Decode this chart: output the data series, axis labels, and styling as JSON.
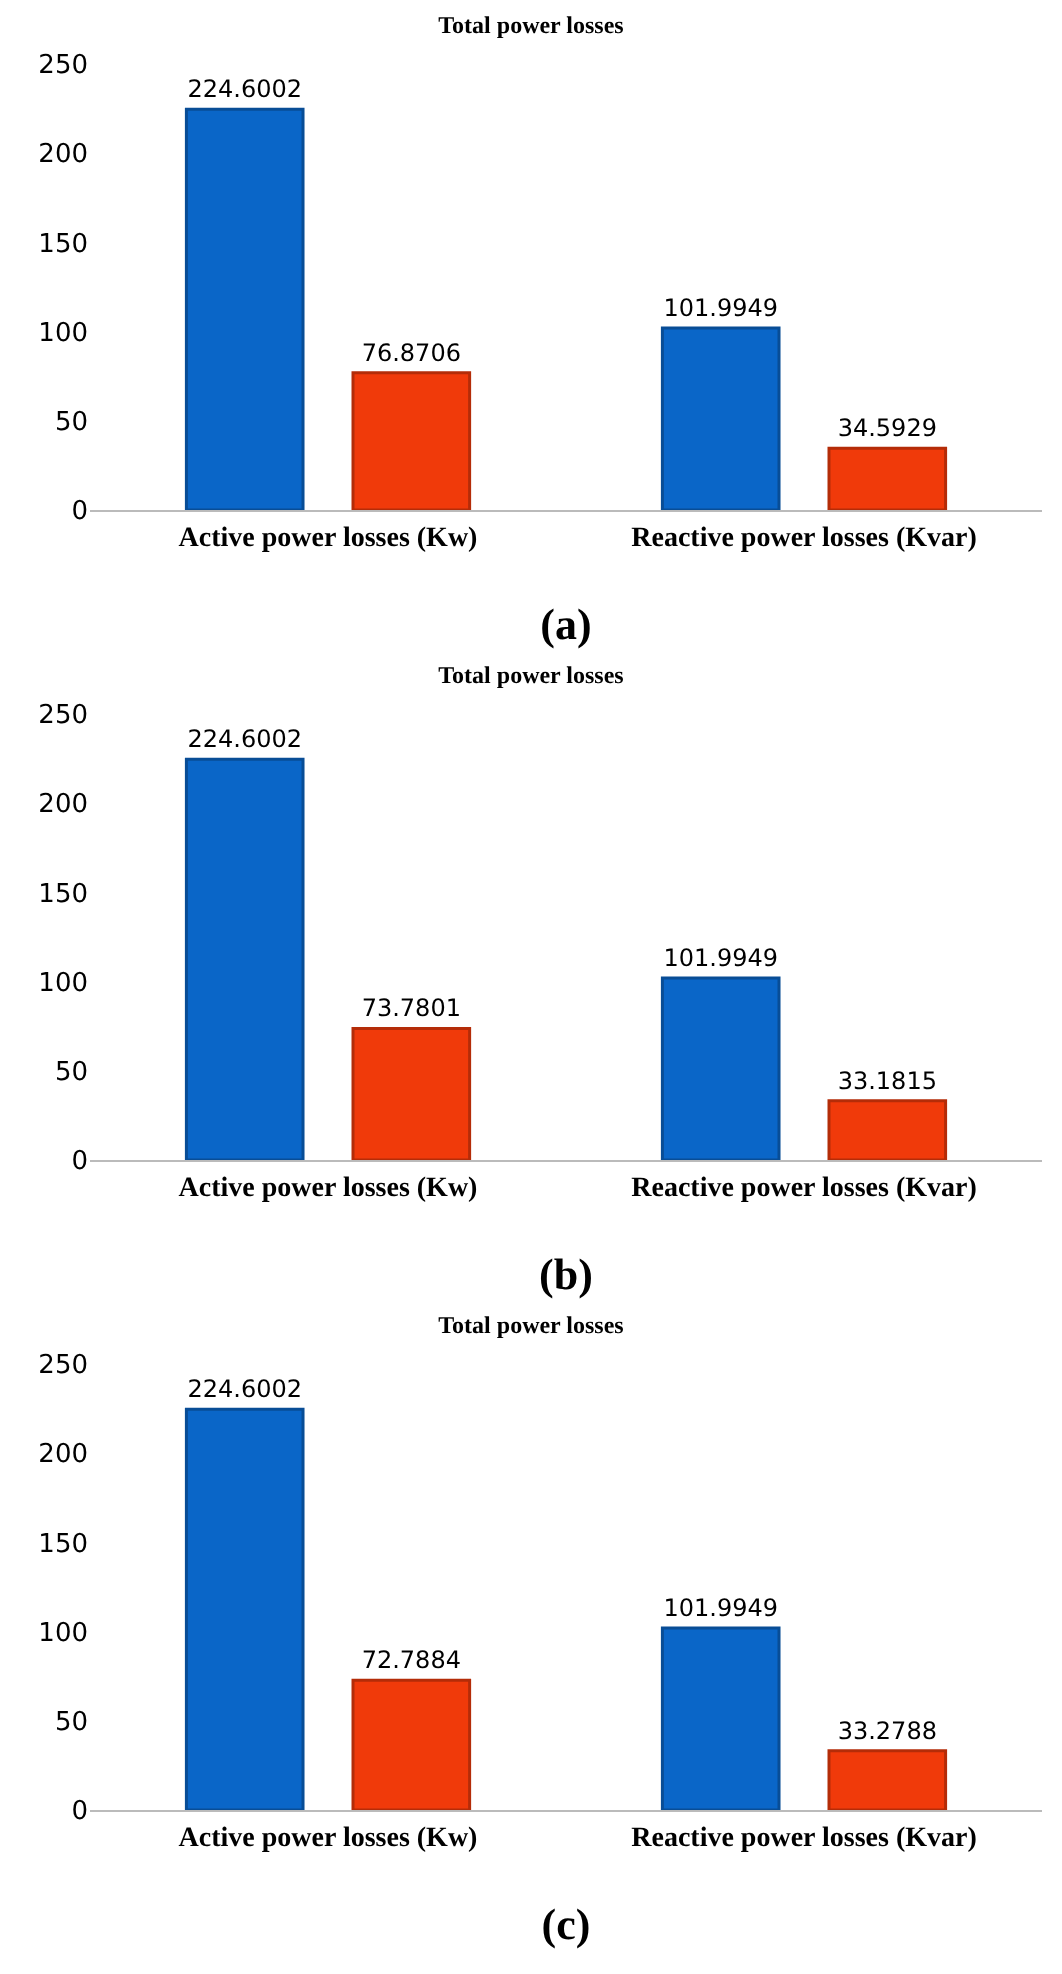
{
  "chart_data": [
    {
      "type": "bar",
      "title": "Total power losses",
      "categories": [
        "Active power losses (Kw)",
        "Reactive power losses (Kvar)"
      ],
      "series": [
        {
          "color": "#0a66c8",
          "values": [
            224.6002,
            101.9949
          ]
        },
        {
          "color": "#f03a0a",
          "values": [
            76.8706,
            34.5929
          ]
        }
      ],
      "ylim": [
        0,
        250
      ],
      "yticks": [
        0,
        50,
        100,
        150,
        200,
        250
      ],
      "grid": false,
      "data_labels": true,
      "annotations": [
        "(a)"
      ]
    },
    {
      "type": "bar",
      "title": "Total power losses",
      "categories": [
        "Active power losses (Kw)",
        "Reactive power losses (Kvar)"
      ],
      "series": [
        {
          "color": "#0a66c8",
          "values": [
            224.6002,
            101.9949
          ]
        },
        {
          "color": "#f03a0a",
          "values": [
            73.7801,
            33.1815
          ]
        }
      ],
      "ylim": [
        0,
        250
      ],
      "yticks": [
        0,
        50,
        100,
        150,
        200,
        250
      ],
      "grid": false,
      "data_labels": true,
      "annotations": [
        "(b)"
      ]
    },
    {
      "type": "bar",
      "title": "Total power losses",
      "categories": [
        "Active power losses (Kw)",
        "Reactive power losses (Kvar)"
      ],
      "series": [
        {
          "color": "#0a66c8",
          "values": [
            224.6002,
            101.9949
          ]
        },
        {
          "color": "#f03a0a",
          "values": [
            72.7884,
            33.2788
          ]
        }
      ],
      "ylim": [
        0,
        250
      ],
      "yticks": [
        0,
        50,
        100,
        150,
        200,
        250
      ],
      "grid": false,
      "data_labels": true,
      "annotations": [
        "(c)"
      ]
    }
  ]
}
